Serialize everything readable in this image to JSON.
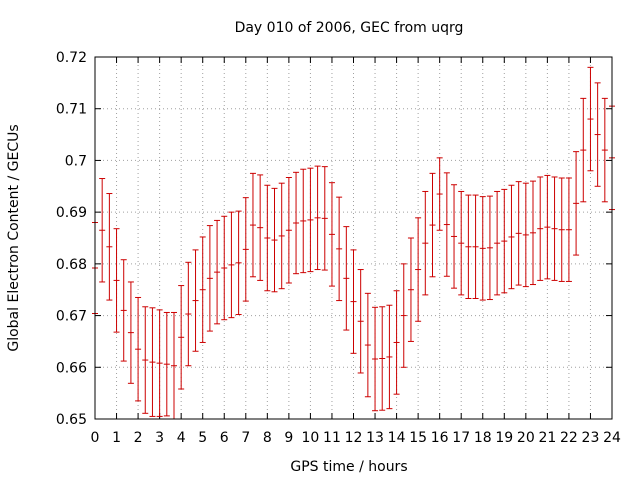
{
  "chart_data": {
    "type": "errorbar",
    "title": "Day 010 of 2006, GEC from uqrg",
    "xlabel": "GPS time / hours",
    "ylabel": "Global Electron Content / GECUs",
    "xlim": [
      0,
      24
    ],
    "ylim": [
      0.65,
      0.72
    ],
    "x_ticks": [
      "0",
      "1",
      "2",
      "3",
      "4",
      "5",
      "6",
      "7",
      "8",
      "9",
      "10",
      "11",
      "12",
      "13",
      "14",
      "15",
      "16",
      "17",
      "18",
      "19",
      "20",
      "21",
      "22",
      "23",
      "24"
    ],
    "y_ticks": [
      "0.65",
      "0.66",
      "0.67",
      "0.68",
      "0.69",
      "0.7",
      "0.71",
      "0.72"
    ],
    "grid": true,
    "color": "#cc0000",
    "series": [
      {
        "x": [
          0.0,
          0.333,
          0.667,
          1.0,
          1.333,
          1.667,
          2.0,
          2.333,
          2.667,
          3.0,
          3.333,
          3.667,
          4.0,
          4.333,
          4.667,
          5.0,
          5.333,
          5.667,
          6.0,
          6.333,
          6.667,
          7.0,
          7.333,
          7.667,
          8.0,
          8.333,
          8.667,
          9.0,
          9.333,
          9.667,
          10.0,
          10.333,
          10.667,
          11.0,
          11.333,
          11.667,
          12.0,
          12.333,
          12.667,
          13.0,
          13.333,
          13.667,
          14.0,
          14.333,
          14.667,
          15.0,
          15.333,
          15.667,
          16.0,
          16.333,
          16.667,
          17.0,
          17.333,
          17.667,
          18.0,
          18.333,
          18.667,
          19.0,
          19.333,
          19.667,
          20.0,
          20.333,
          20.667,
          21.0,
          21.333,
          21.667,
          22.0,
          22.333,
          22.667,
          23.0,
          23.333,
          23.667,
          24.0
        ],
        "y": [
          0.6792,
          0.6865,
          0.6833,
          0.6768,
          0.671,
          0.6667,
          0.6635,
          0.6614,
          0.661,
          0.6608,
          0.6606,
          0.6603,
          0.6658,
          0.6703,
          0.6729,
          0.675,
          0.6772,
          0.6784,
          0.6792,
          0.6798,
          0.6802,
          0.6828,
          0.6875,
          0.687,
          0.685,
          0.6846,
          0.6854,
          0.6865,
          0.6879,
          0.6883,
          0.6885,
          0.6889,
          0.6888,
          0.6857,
          0.6829,
          0.6772,
          0.6727,
          0.6689,
          0.6643,
          0.6616,
          0.6617,
          0.662,
          0.6648,
          0.67,
          0.675,
          0.6789,
          0.684,
          0.6875,
          0.6935,
          0.6876,
          0.6853,
          0.684,
          0.6833,
          0.6833,
          0.683,
          0.6831,
          0.684,
          0.6844,
          0.6852,
          0.6859,
          0.6856,
          0.686,
          0.6868,
          0.6871,
          0.6868,
          0.6866,
          0.6866,
          0.6917,
          0.702,
          0.708,
          0.705,
          0.702,
          0.7005
        ],
        "err": [
          0.0088,
          0.01,
          0.0103,
          0.01,
          0.0098,
          0.0098,
          0.01,
          0.0103,
          0.0105,
          0.0103,
          0.01,
          0.0103,
          0.01,
          0.01,
          0.0098,
          0.0102,
          0.0102,
          0.01,
          0.01,
          0.0102,
          0.01,
          0.01,
          0.01,
          0.0102,
          0.0102,
          0.01,
          0.0102,
          0.0102,
          0.0098,
          0.01,
          0.01,
          0.01,
          0.01,
          0.01,
          0.01,
          0.01,
          0.01,
          0.01,
          0.01,
          0.01,
          0.01,
          0.01,
          0.01,
          0.01,
          0.01,
          0.01,
          0.01,
          0.01,
          0.007,
          0.01,
          0.01,
          0.01,
          0.01,
          0.01,
          0.01,
          0.01,
          0.01,
          0.01,
          0.01,
          0.01,
          0.01,
          0.01,
          0.01,
          0.01,
          0.01,
          0.01,
          0.01,
          0.01,
          0.01,
          0.01,
          0.01,
          0.01,
          0.01
        ]
      }
    ]
  }
}
